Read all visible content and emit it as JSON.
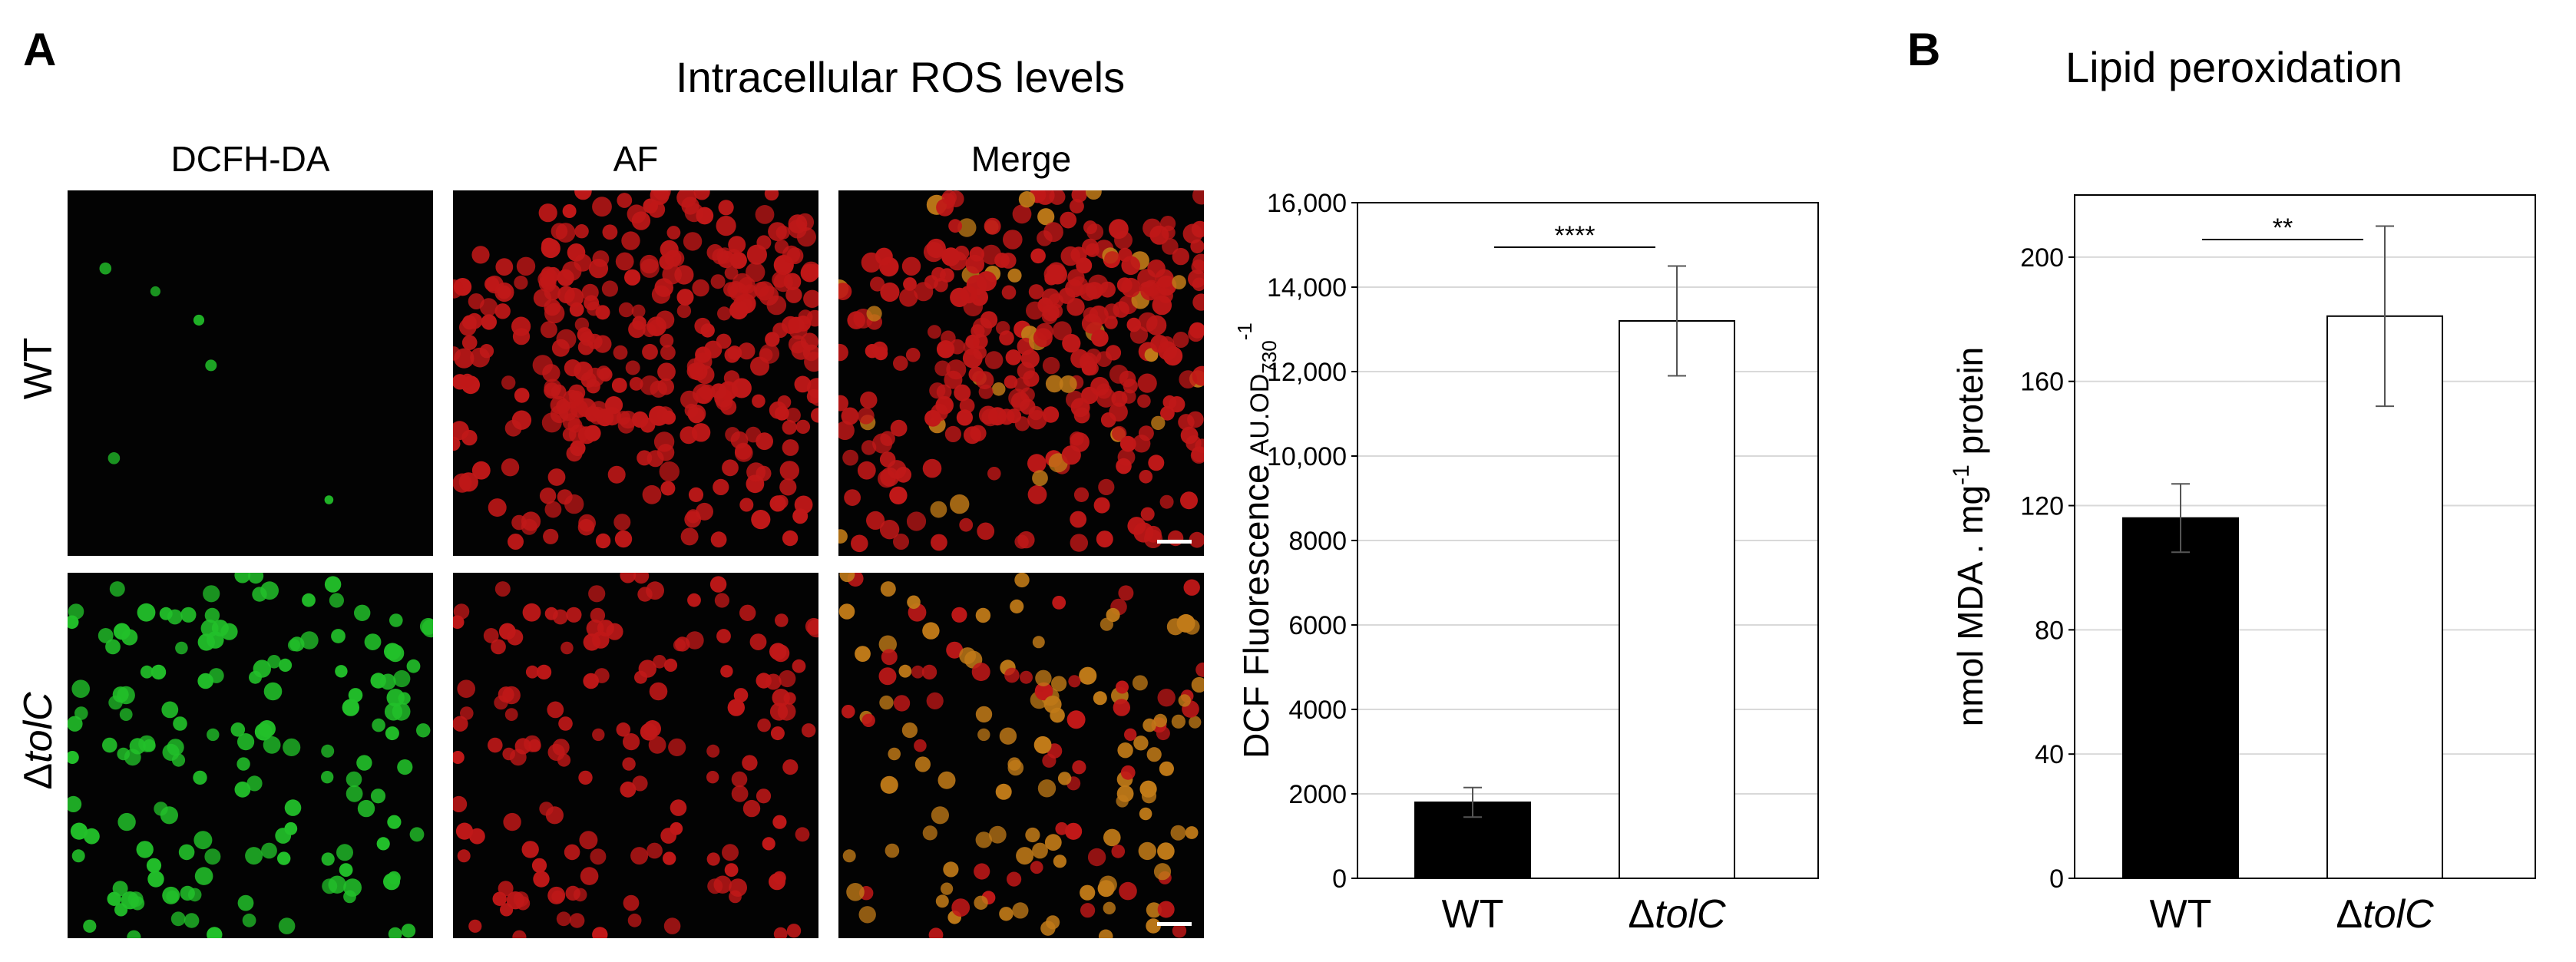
{
  "panel_a": {
    "letter": "A",
    "title": "Intracellular ROS levels",
    "columns": [
      "DCFH-DA",
      "AF",
      "Merge"
    ],
    "rows": {
      "wt": "WT",
      "mutant_prefix": "Δ",
      "mutant_gene": "tolC"
    }
  },
  "panel_b": {
    "letter": "B",
    "title": "Lipid peroxidation"
  },
  "colors": {
    "wt_bar": "#000000",
    "mutant_bar": "#ffffff",
    "grid": "#d9d9d9",
    "green_cell": "#22c02a",
    "red_cell": "#c01818",
    "merge_cell": "#c07a18"
  },
  "chart_data": [
    {
      "type": "bar",
      "categories": [
        "WT",
        "ΔtolC"
      ],
      "category_labels": [
        {
          "prefix": "",
          "gene": "WT"
        },
        {
          "prefix": "Δ",
          "gene": "tolC"
        }
      ],
      "values": [
        1800,
        13200
      ],
      "errors": [
        350,
        1300
      ],
      "ylabel": "DCF Fluorescence",
      "ylabel_unit": "AU.OD",
      "ylabel_unit_sub": "730",
      "ylabel_unit_sup": "-1",
      "ylim": [
        0,
        16000
      ],
      "yticks": [
        0,
        2000,
        4000,
        6000,
        8000,
        10000,
        12000,
        14000,
        16000
      ],
      "ytick_labels": [
        "0",
        "2000",
        "4000",
        "6000",
        "8000",
        "10,000",
        "12,000",
        "14,000",
        "16,000"
      ],
      "grid": true,
      "significance": "****"
    },
    {
      "type": "bar",
      "categories": [
        "WT",
        "ΔtolC"
      ],
      "category_labels": [
        {
          "prefix": "",
          "gene": "WT"
        },
        {
          "prefix": "Δ",
          "gene": "tolC"
        }
      ],
      "values": [
        116,
        181
      ],
      "errors": [
        11,
        29
      ],
      "ylabel": "nmol MDA . mg",
      "ylabel_sup": "-1",
      "ylabel_suffix": " protein",
      "ylim": [
        0,
        220
      ],
      "yticks": [
        0,
        40,
        80,
        120,
        160,
        200
      ],
      "ytick_labels": [
        "0",
        "40",
        "80",
        "120",
        "160",
        "200"
      ],
      "grid": true,
      "significance": "**"
    }
  ]
}
